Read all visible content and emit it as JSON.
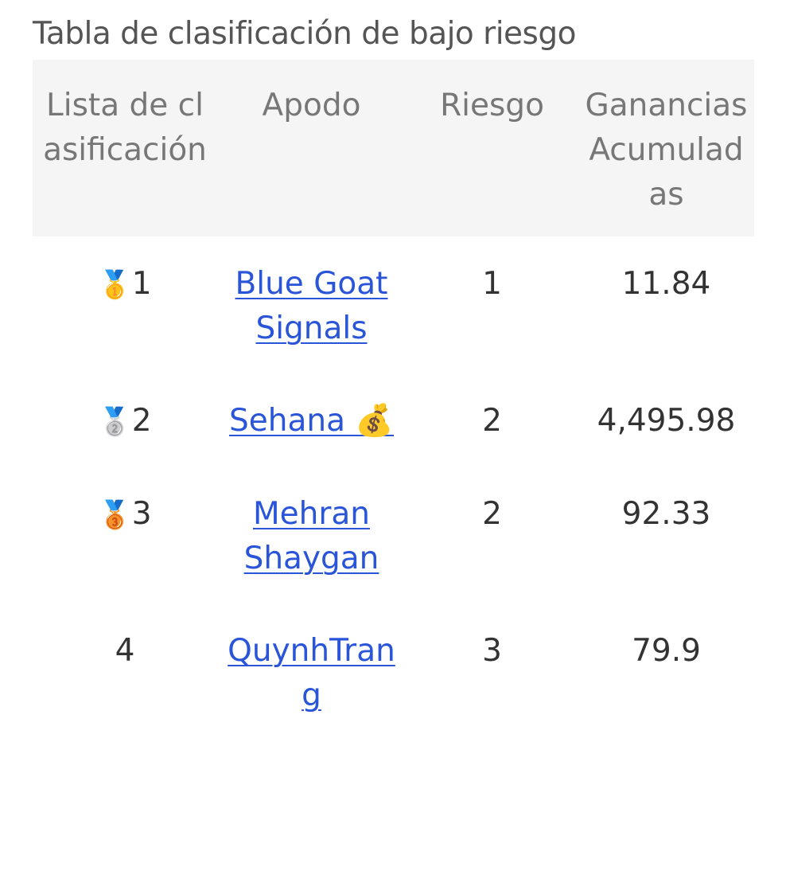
{
  "title": "Tabla de clasificación de bajo riesgo",
  "columns": [
    "Lista de clasificación",
    "Apodo",
    "Riesgo",
    "Ganancias Acumuladas"
  ],
  "rows": [
    {
      "medal": "🥇",
      "rank": "1",
      "nickname": "Blue Goat Signals",
      "risk": "1",
      "earnings": "11.84"
    },
    {
      "medal": "🥈",
      "rank": "2",
      "nickname": "Sehana 💰",
      "risk": "2",
      "earnings": "4,495.98"
    },
    {
      "medal": "🥉",
      "rank": "3",
      "nickname": "Mehran Shaygan",
      "risk": "2",
      "earnings": "92.33"
    },
    {
      "medal": "",
      "rank": "4",
      "nickname": "QuynhTrang",
      "risk": "3",
      "earnings": "79.9"
    }
  ],
  "colors": {
    "link": "#2a55d8",
    "header_bg": "#f5f5f5"
  }
}
